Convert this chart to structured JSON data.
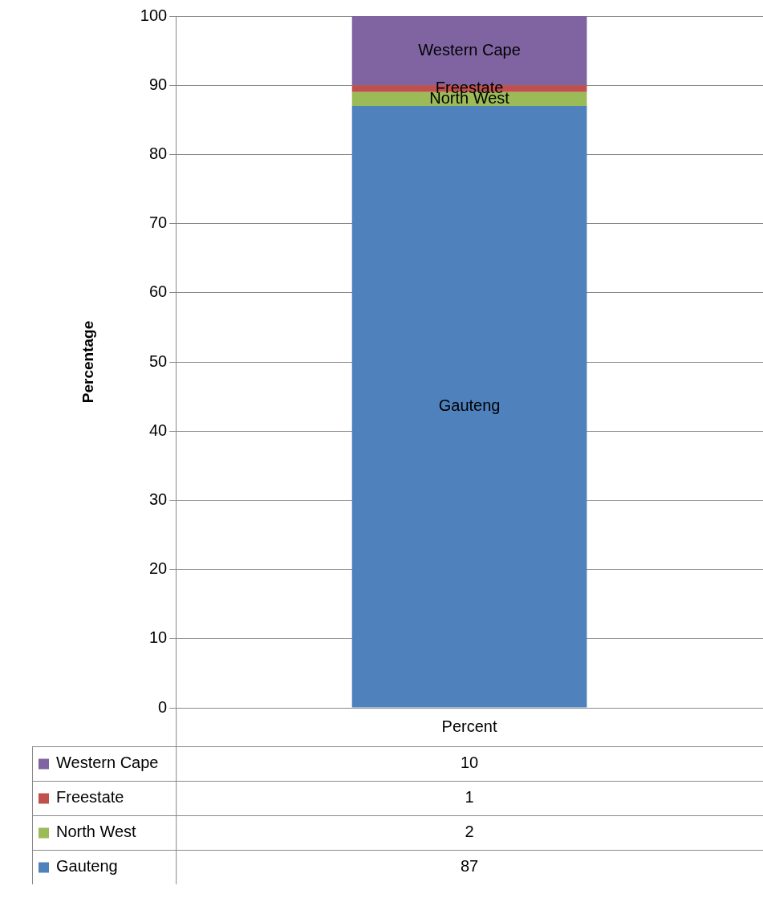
{
  "chart_data": {
    "type": "bar",
    "stacked": true,
    "categories": [
      "Percent"
    ],
    "ylabel": "Percentage",
    "ylim": [
      0,
      100
    ],
    "yticks": [
      0,
      10,
      20,
      30,
      40,
      50,
      60,
      70,
      80,
      90,
      100
    ],
    "grid": "y",
    "legend": "bottom",
    "annotations": [
      "10",
      "1",
      "2",
      "87"
    ],
    "series": [
      {
        "name": "Gauteng",
        "color": "#4f81bd",
        "values": [
          87
        ]
      },
      {
        "name": "North West",
        "color": "#9bbb59",
        "values": [
          2
        ]
      },
      {
        "name": "Freestate",
        "color": "#c0504d",
        "values": [
          1
        ]
      },
      {
        "name": "Western Cape",
        "color": "#8064a2",
        "values": [
          10
        ]
      }
    ]
  }
}
